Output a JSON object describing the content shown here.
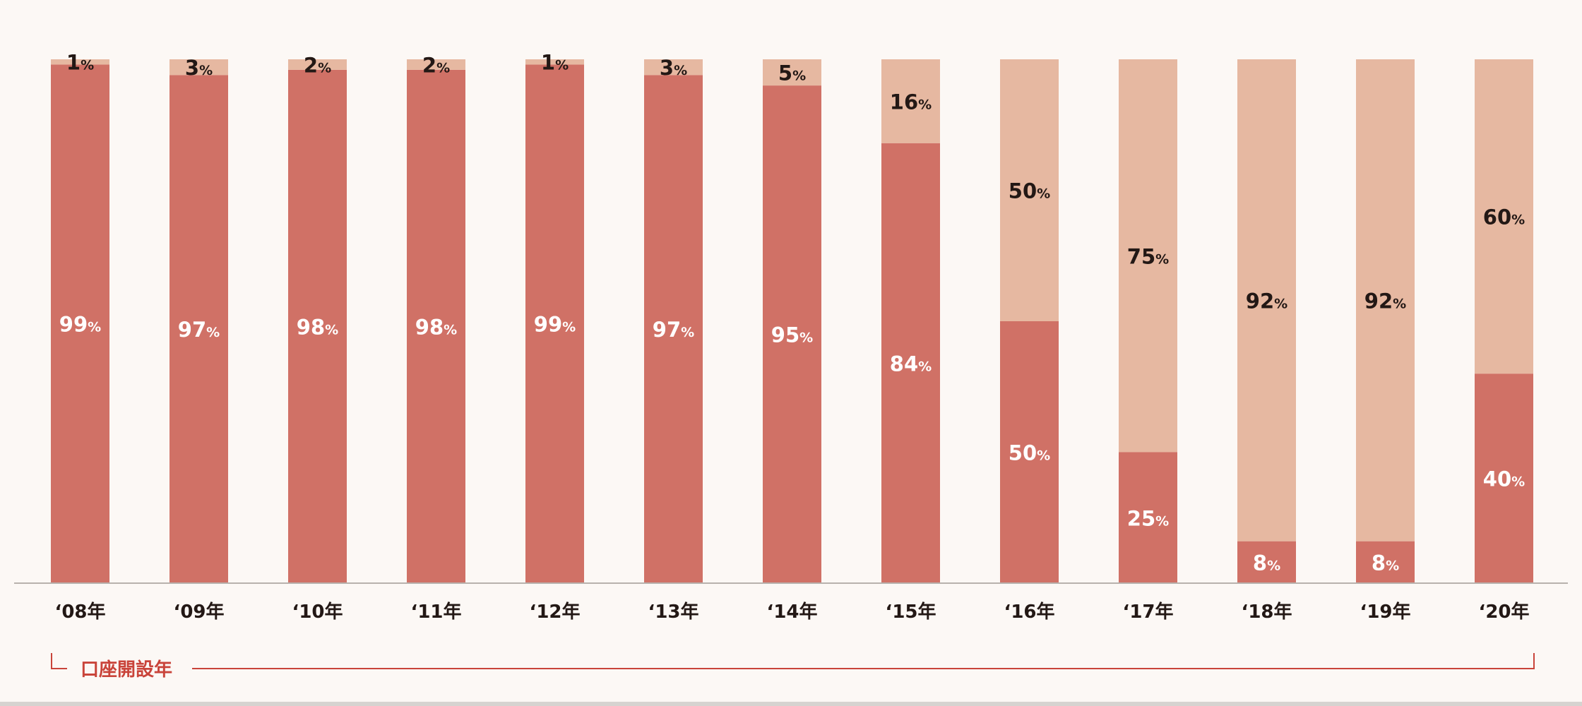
{
  "chart_data": {
    "type": "bar",
    "stacked": true,
    "categories": [
      "‘08年",
      "‘09年",
      "‘10年",
      "‘11年",
      "‘12年",
      "‘13年",
      "‘14年",
      "‘15年",
      "‘16年",
      "‘17年",
      "‘18年",
      "‘19年",
      "‘20年"
    ],
    "series": [
      {
        "color": "#d07166",
        "label_color": "#ffffff",
        "values": [
          99,
          97,
          98,
          98,
          99,
          97,
          95,
          84,
          50,
          25,
          8,
          8,
          40
        ]
      },
      {
        "color": "#e6b8a1",
        "label_color": "#231815",
        "values": [
          1,
          3,
          2,
          2,
          1,
          3,
          5,
          16,
          50,
          75,
          92,
          92,
          60
        ]
      }
    ],
    "ylim": [
      0,
      100
    ],
    "value_suffix": "%",
    "xlabel": "口座開設年",
    "accent_color": "#c9443a",
    "grid": false,
    "legend": "none"
  }
}
